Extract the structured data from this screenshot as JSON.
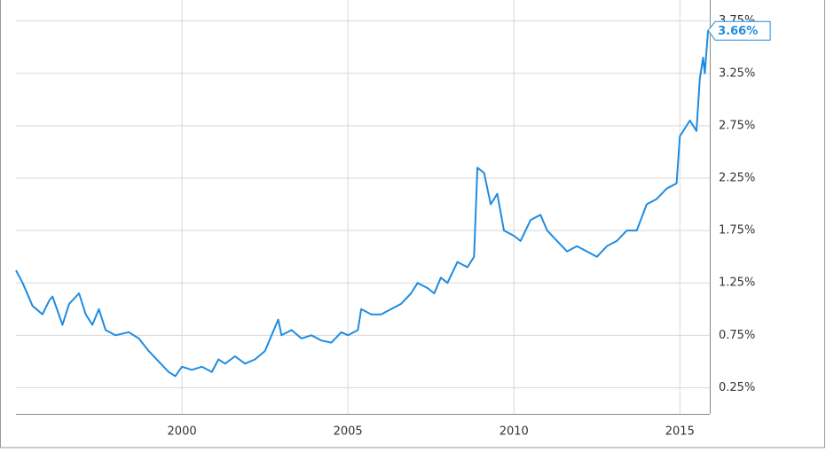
{
  "chart_data": {
    "type": "line",
    "x": [
      1995.0,
      1995.2,
      1995.5,
      1995.8,
      1996.0,
      1996.1,
      1996.4,
      1996.6,
      1996.9,
      1997.1,
      1997.3,
      1997.5,
      1997.7,
      1998.0,
      1998.4,
      1998.7,
      1999.0,
      1999.3,
      1999.6,
      1999.8,
      2000.0,
      2000.3,
      2000.6,
      2000.9,
      2001.1,
      2001.3,
      2001.6,
      2001.9,
      2002.2,
      2002.5,
      2002.7,
      2002.9,
      2003.0,
      2003.3,
      2003.6,
      2003.9,
      2004.2,
      2004.5,
      2004.8,
      2005.0,
      2005.3,
      2005.4,
      2005.7,
      2006.0,
      2006.3,
      2006.6,
      2006.9,
      2007.1,
      2007.4,
      2007.6,
      2007.8,
      2008.0,
      2008.3,
      2008.6,
      2008.8,
      2008.9,
      2009.1,
      2009.3,
      2009.5,
      2009.7,
      2010.0,
      2010.2,
      2010.5,
      2010.8,
      2011.0,
      2011.3,
      2011.6,
      2011.9,
      2012.2,
      2012.5,
      2012.8,
      2013.1,
      2013.4,
      2013.7,
      2014.0,
      2014.3,
      2014.6,
      2014.9,
      2015.0,
      2015.2,
      2015.3,
      2015.5,
      2015.6,
      2015.7,
      2015.75,
      2015.85
    ],
    "series": [
      {
        "color": "#1f8ce0",
        "values": [
          1.37,
          1.25,
          1.03,
          0.95,
          1.08,
          1.12,
          0.85,
          1.05,
          1.15,
          0.95,
          0.85,
          1.0,
          0.8,
          0.75,
          0.78,
          0.72,
          0.6,
          0.5,
          0.4,
          0.36,
          0.45,
          0.42,
          0.45,
          0.4,
          0.52,
          0.48,
          0.55,
          0.48,
          0.52,
          0.6,
          0.75,
          0.9,
          0.75,
          0.8,
          0.72,
          0.75,
          0.7,
          0.68,
          0.78,
          0.75,
          0.8,
          1.0,
          0.95,
          0.95,
          1.0,
          1.05,
          1.15,
          1.25,
          1.2,
          1.15,
          1.3,
          1.25,
          1.45,
          1.4,
          1.5,
          2.35,
          2.3,
          2.0,
          2.1,
          1.75,
          1.7,
          1.65,
          1.85,
          1.9,
          1.75,
          1.65,
          1.55,
          1.6,
          1.55,
          1.5,
          1.6,
          1.65,
          1.75,
          1.75,
          2.0,
          2.05,
          2.15,
          2.2,
          2.65,
          2.75,
          2.8,
          2.7,
          3.2,
          3.4,
          3.25,
          3.66
        ]
      }
    ],
    "xlim": [
      1995.0,
      2015.9
    ],
    "xticks": [
      2000,
      2005,
      2010,
      2015
    ],
    "ylim": [
      0,
      3.95
    ],
    "yticks": [
      {
        "value": 0.25,
        "label": "0.25%"
      },
      {
        "value": 0.75,
        "label": "0.75%"
      },
      {
        "value": 1.25,
        "label": "1.25%"
      },
      {
        "value": 1.75,
        "label": "1.75%"
      },
      {
        "value": 2.25,
        "label": "2.25%"
      },
      {
        "value": 2.75,
        "label": "2.75%"
      },
      {
        "value": 3.25,
        "label": "3.25%"
      },
      {
        "value": 3.75,
        "label": "3.75%"
      }
    ],
    "annotations": [
      {
        "x": 2015.85,
        "y": 3.66,
        "label": "3.66%"
      }
    ],
    "grid": true
  }
}
